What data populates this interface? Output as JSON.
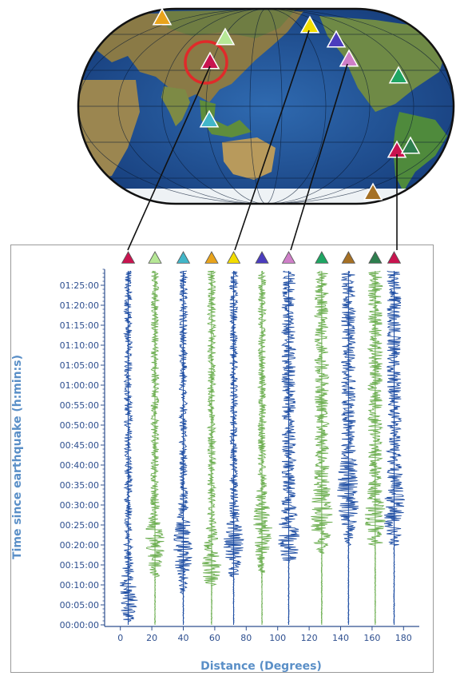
{
  "map": {
    "stations": [
      {
        "color": "#e8a31c"
      },
      {
        "color": "#b6e796"
      },
      {
        "color": "#c8144f"
      },
      {
        "color": "#42b6c8"
      },
      {
        "color": "#f2dc00"
      },
      {
        "color": "#4b3dbd"
      },
      {
        "color": "#cf7fc8"
      },
      {
        "color": "#1fa563"
      },
      {
        "color": "#c8144f"
      },
      {
        "color": "#2e7e4e"
      },
      {
        "color": "#a57024"
      }
    ]
  },
  "chart_data": {
    "type": "seismogram-record-section",
    "xlabel": "Distance (Degrees)",
    "ylabel": "Time since earthquake (h:min:s)",
    "xlim": [
      -10,
      190
    ],
    "ylim_minutes": [
      0,
      89
    ],
    "xticks": [
      0,
      20,
      40,
      60,
      80,
      100,
      120,
      140,
      160,
      180
    ],
    "yticks": [
      "00:00:00",
      "00:05:00",
      "00:10:00",
      "00:15:00",
      "00:20:00",
      "00:25:00",
      "00:30:00",
      "00:35:00",
      "00:40:00",
      "00:45:00",
      "00:50:00",
      "00:55:00",
      "01:00:00",
      "01:05:00",
      "01:10:00",
      "01:15:00",
      "01:20:00",
      "01:25:00"
    ],
    "colors": {
      "blue": "#1f4ea3",
      "green": "#6cae50",
      "axis": "#2e4f8f"
    },
    "traces": [
      {
        "distance": 5,
        "color": "blue",
        "arrival_min": 1,
        "marker_color": "#c8144f"
      },
      {
        "distance": 22,
        "color": "green",
        "arrival_min": 12,
        "marker_color": "#b6e796"
      },
      {
        "distance": 40,
        "color": "blue",
        "arrival_min": 8,
        "marker_color": "#42b6c8"
      },
      {
        "distance": 58,
        "color": "green",
        "arrival_min": 10,
        "marker_color": "#e8a31c"
      },
      {
        "distance": 72,
        "color": "blue",
        "arrival_min": 12,
        "marker_color": "#f2dc00"
      },
      {
        "distance": 90,
        "color": "green",
        "arrival_min": 13,
        "marker_color": "#4b3dbd"
      },
      {
        "distance": 107,
        "color": "blue",
        "arrival_min": 16,
        "marker_color": "#cf7fc8"
      },
      {
        "distance": 128,
        "color": "green",
        "arrival_min": 18,
        "marker_color": "#1fa563"
      },
      {
        "distance": 145,
        "color": "blue",
        "arrival_min": 20,
        "marker_color": "#a57024"
      },
      {
        "distance": 162,
        "color": "green",
        "arrival_min": 20,
        "marker_color": "#2e7e4e"
      },
      {
        "distance": 174,
        "color": "blue",
        "arrival_min": 20,
        "marker_color": "#c8144f"
      }
    ]
  }
}
